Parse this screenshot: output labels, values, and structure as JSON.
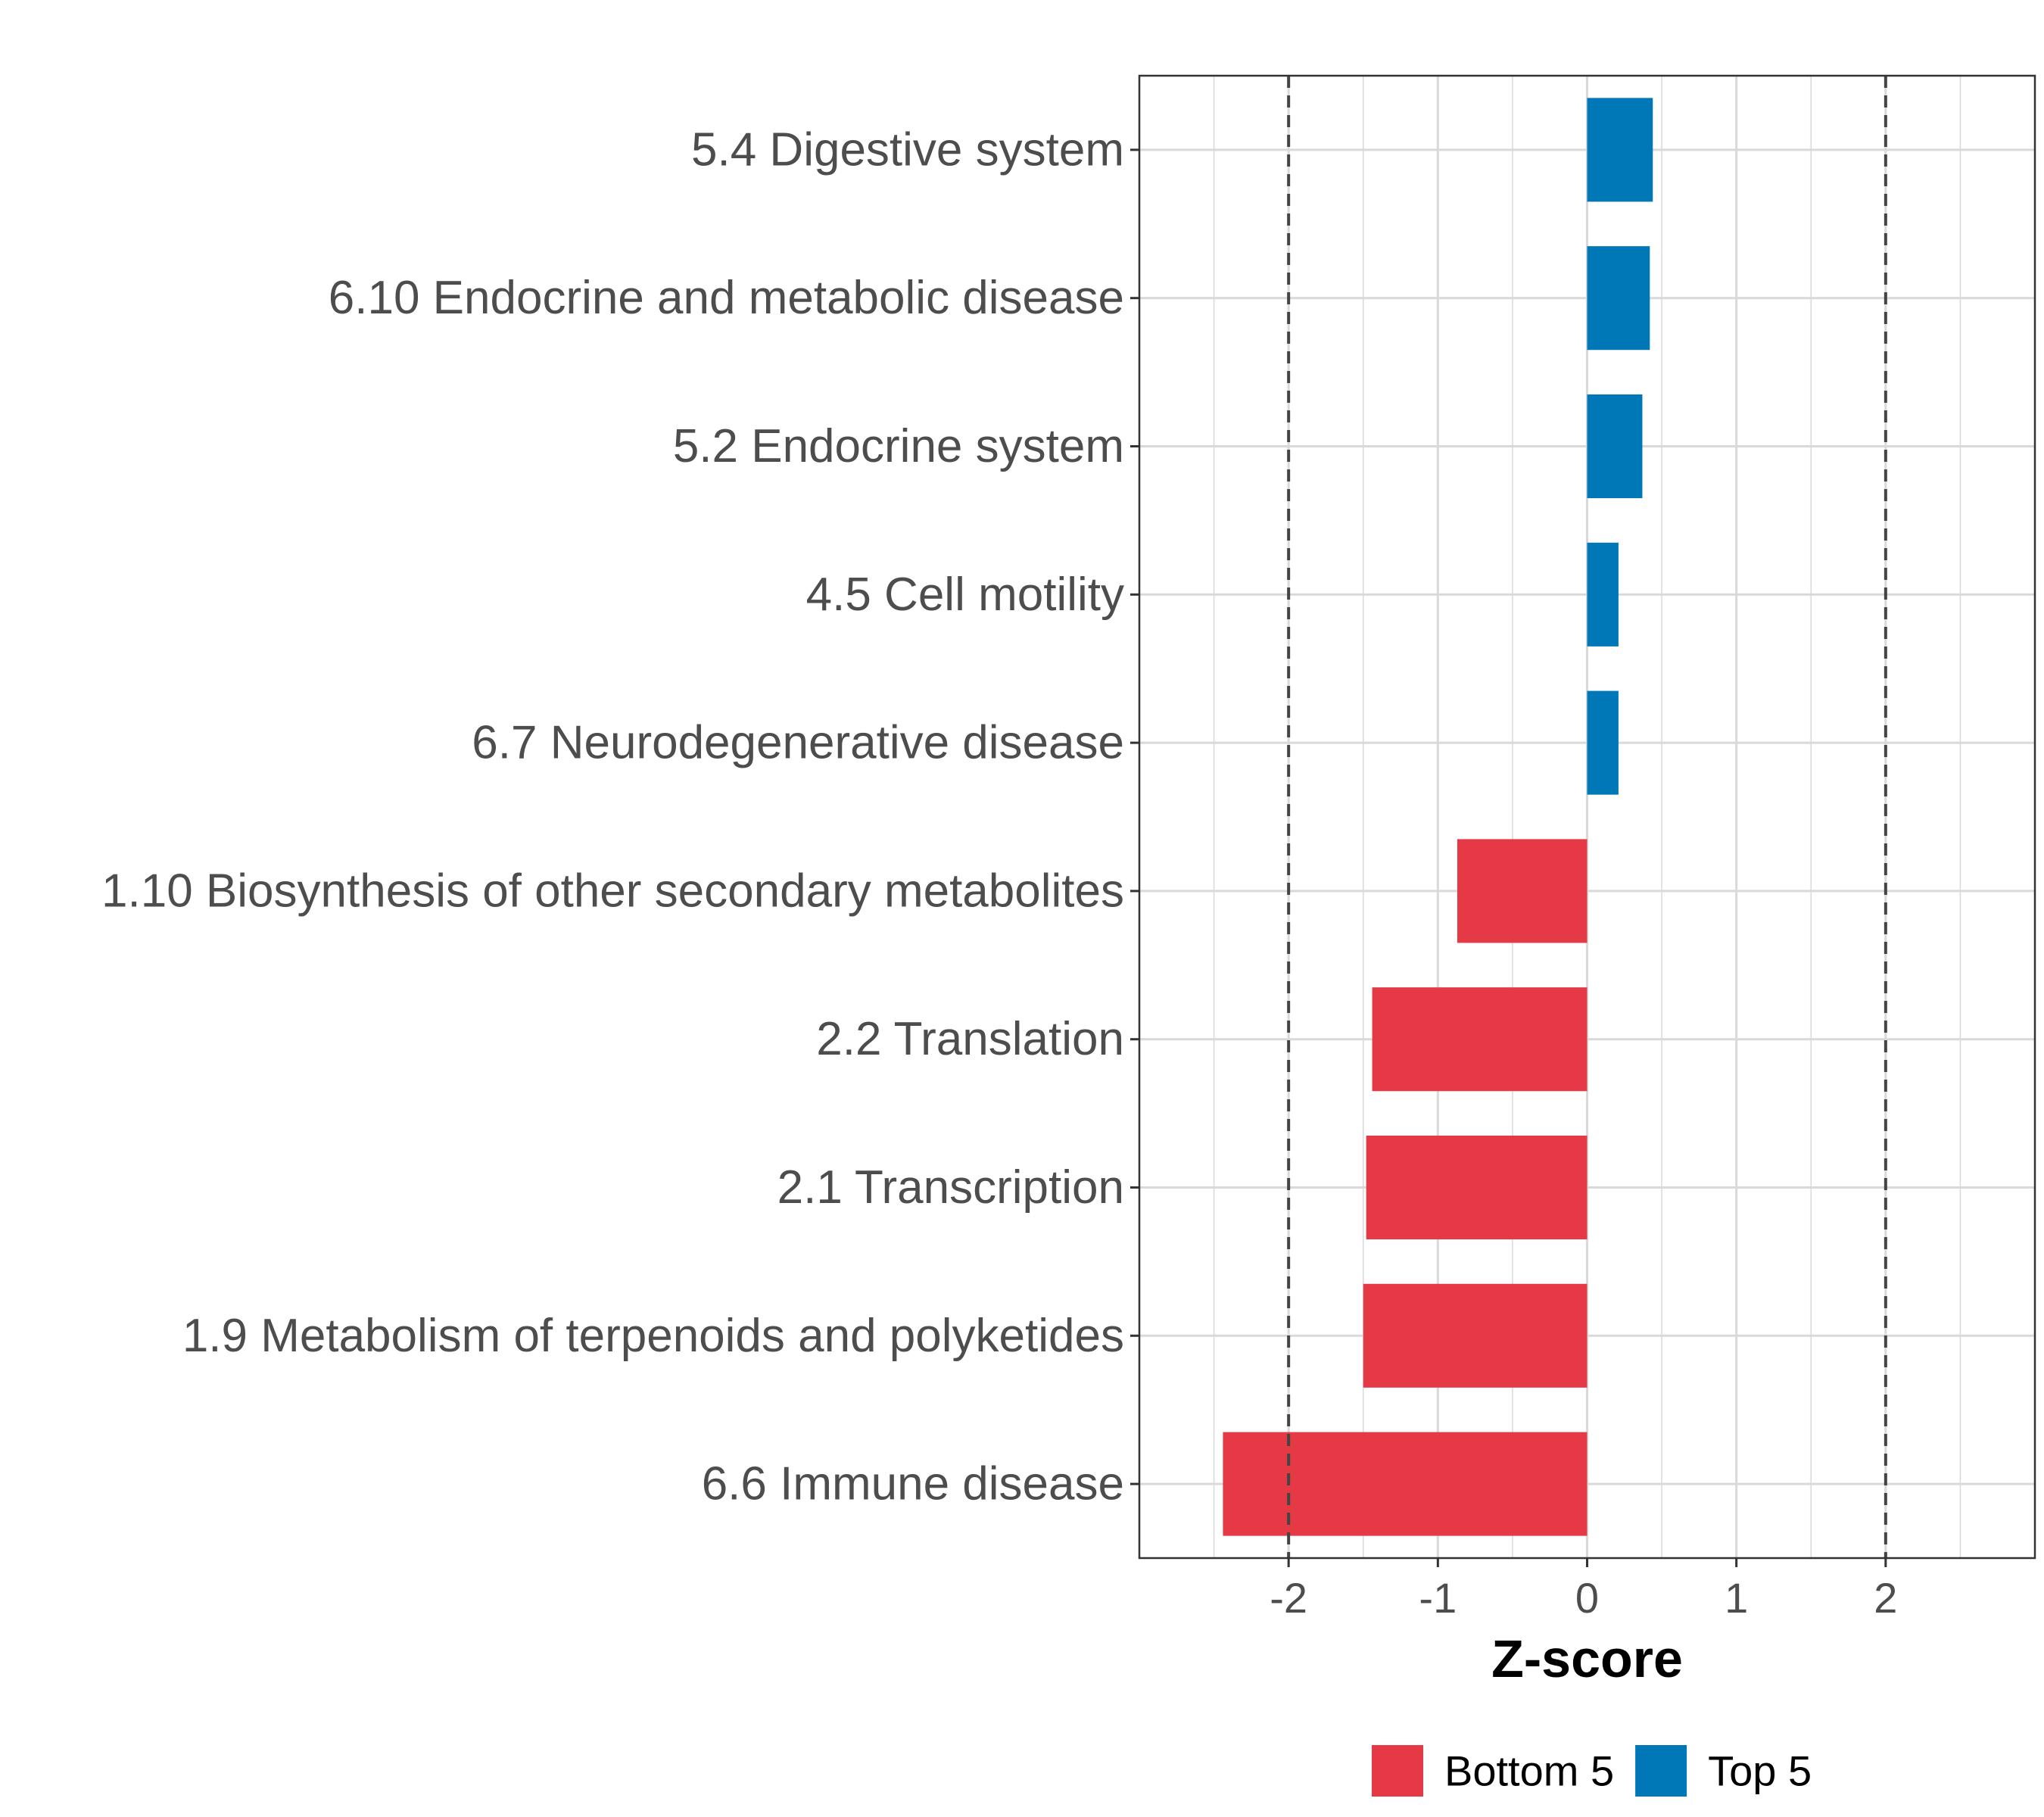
{
  "chart_data": {
    "type": "bar",
    "orientation": "horizontal",
    "categories": [
      "5.4 Digestive system",
      "6.10 Endocrine and metabolic disease",
      "5.2 Endocrine system",
      "4.5 Cell motility",
      "6.7 Neurodegenerative disease",
      "1.10 Biosynthesis of other secondary metabolites",
      "2.2 Translation",
      "2.1 Transcription",
      "1.9 Metabolism of terpenoids and polyketides",
      "6.6 Immune disease"
    ],
    "values": [
      0.44,
      0.42,
      0.37,
      0.21,
      0.21,
      -0.87,
      -1.44,
      -1.48,
      -1.5,
      -2.44
    ],
    "groups": [
      "Top 5",
      "Top 5",
      "Top 5",
      "Top 5",
      "Top 5",
      "Bottom 5",
      "Bottom 5",
      "Bottom 5",
      "Bottom 5",
      "Bottom 5"
    ],
    "xlabel": "Z-score",
    "ylabel": "",
    "xlim": [
      -3,
      3
    ],
    "xticks": [
      -2,
      -1,
      0,
      1,
      2
    ],
    "reference_lines": [
      -2,
      2
    ],
    "grid": true,
    "legend": {
      "position": "bottom",
      "entries": [
        {
          "label": "Bottom 5",
          "color": "#e63946"
        },
        {
          "label": "Top 5",
          "color": "#0077b6"
        }
      ]
    }
  },
  "colors": {
    "bottom": "#e63946",
    "top": "#0077b6",
    "grid": "#d9d9d9",
    "text": "#4d4d4d",
    "ref_line": "#444444"
  }
}
